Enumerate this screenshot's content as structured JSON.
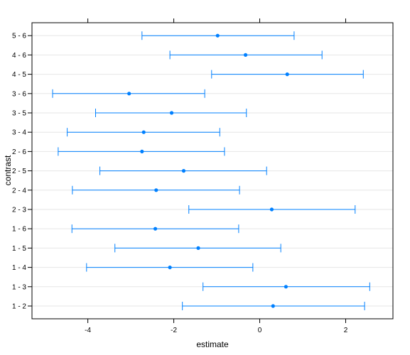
{
  "chart_data": {
    "type": "scatter",
    "subtype": "interval-dot-plot",
    "xlabel": "estimate",
    "ylabel": "contrast",
    "xlim": [
      -5.3,
      3.1
    ],
    "xticks": [
      -4,
      -2,
      0,
      2
    ],
    "xtick_labels": [
      "-4",
      "-2",
      "0",
      "2"
    ],
    "grid": "horizontal",
    "colors": {
      "series": "#0080ff",
      "grid": "#e6e6e6",
      "frame": "#000000"
    },
    "categories": [
      "1 - 2",
      "1 - 3",
      "1 - 4",
      "1 - 5",
      "1 - 6",
      "2 - 3",
      "2 - 4",
      "2 - 5",
      "2 - 6",
      "3 - 4",
      "3 - 5",
      "3 - 6",
      "4 - 5",
      "4 - 6",
      "5 - 6"
    ],
    "series": [
      {
        "estimate": [
          0.31,
          0.61,
          -2.09,
          -1.43,
          -2.43,
          0.28,
          -2.41,
          -1.77,
          -2.74,
          -2.7,
          -2.05,
          -3.04,
          0.64,
          -0.33,
          -0.98
        ],
        "lower": [
          -1.8,
          -1.32,
          -4.03,
          -3.37,
          -4.37,
          -1.65,
          -4.36,
          -3.72,
          -4.69,
          -4.48,
          -3.82,
          -4.82,
          -1.12,
          -2.09,
          -2.74
        ],
        "upper": [
          2.44,
          2.56,
          -0.16,
          0.49,
          -0.49,
          2.22,
          -0.47,
          0.16,
          -0.82,
          -0.93,
          -0.31,
          -1.28,
          2.41,
          1.45,
          0.8
        ]
      }
    ]
  }
}
